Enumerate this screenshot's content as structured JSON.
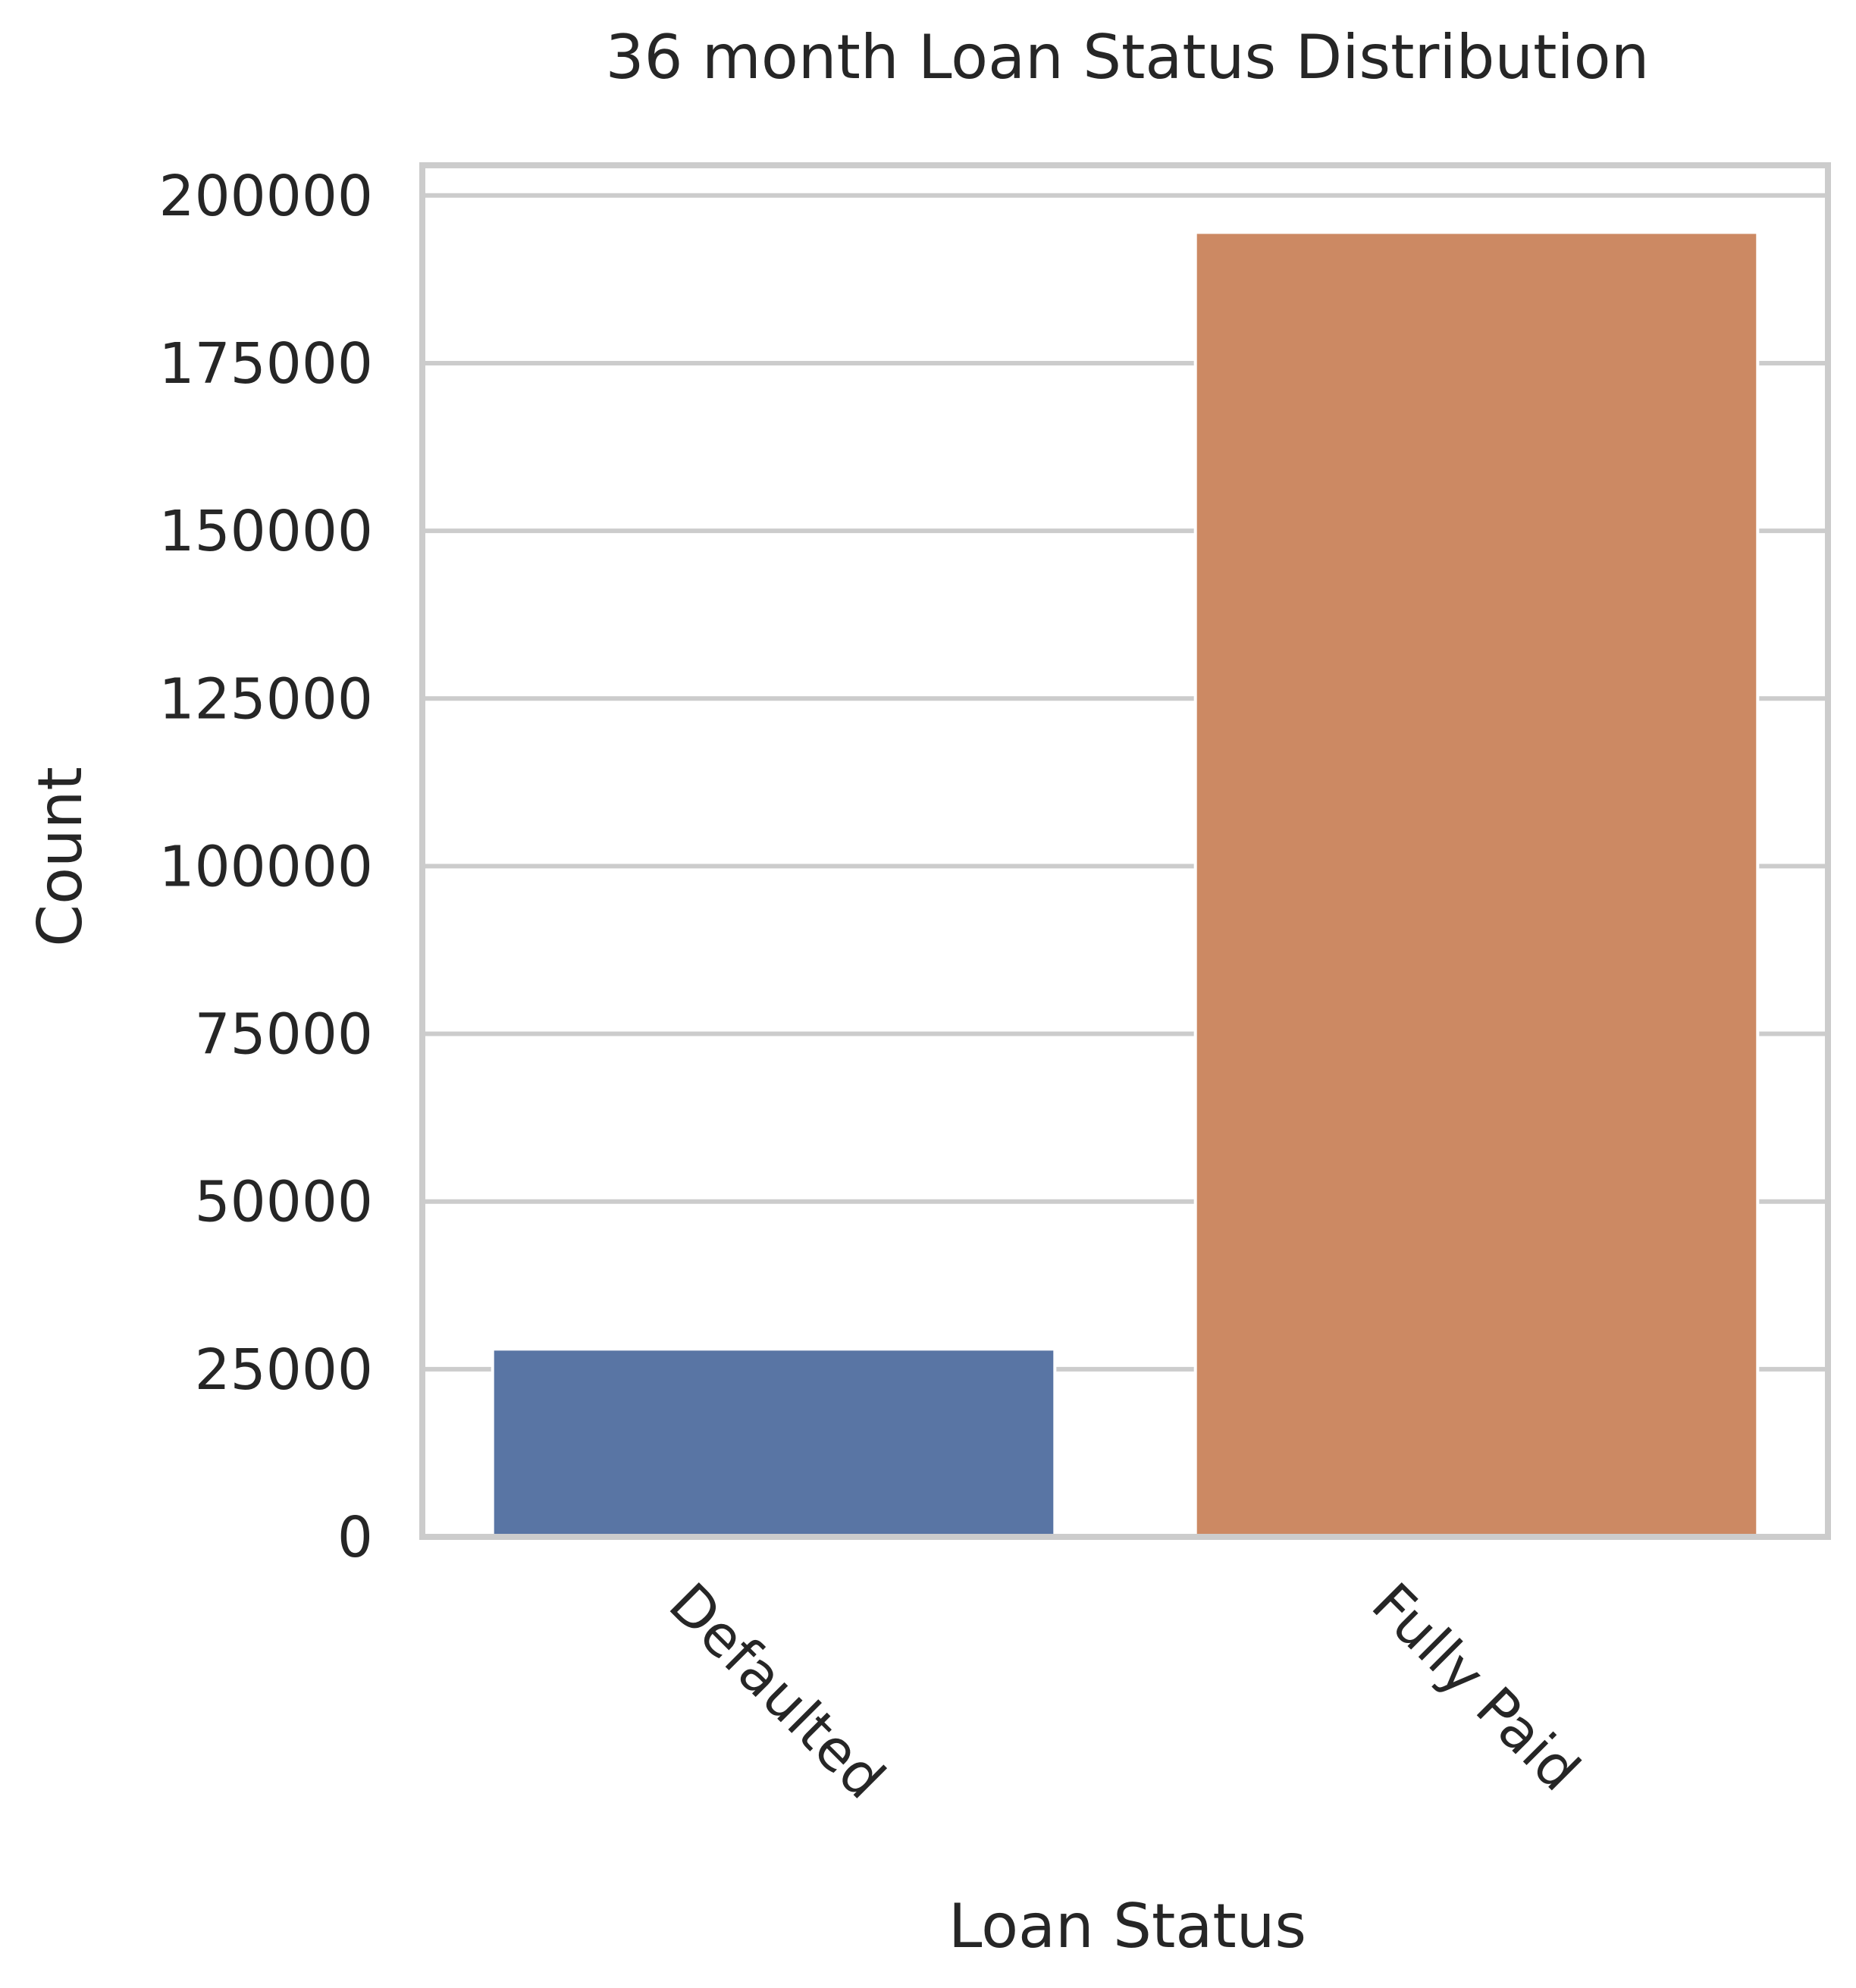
{
  "chart_data": {
    "type": "bar",
    "title": "36 month Loan Status Distribution",
    "xlabel": "Loan Status",
    "ylabel": "Count",
    "categories": [
      "Defaulted",
      "Fully Paid"
    ],
    "values": [
      28000,
      194500
    ],
    "ylim": [
      0,
      204500
    ],
    "yticks": [
      0,
      25000,
      50000,
      75000,
      100000,
      125000,
      150000,
      175000,
      200000
    ],
    "ytick_labels": [
      "0",
      "25000",
      "50000",
      "75000",
      "100000",
      "125000",
      "150000",
      "175000",
      "200000"
    ],
    "colors": [
      "#5975a4",
      "#cc8963"
    ],
    "grid": true,
    "xtick_rotation": "45 degrees clockwise"
  }
}
